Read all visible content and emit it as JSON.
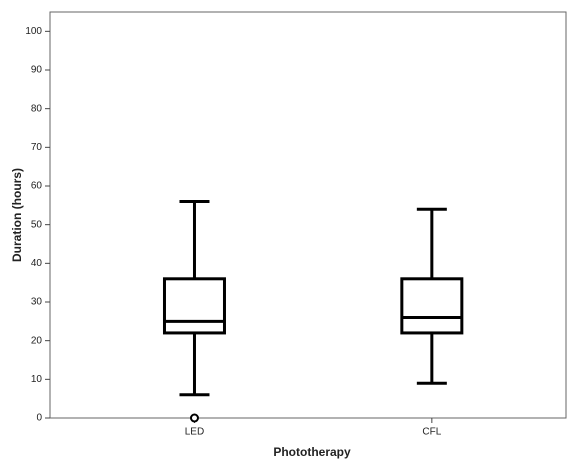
{
  "chart_data": {
    "type": "box",
    "x_label": "Phototherapy",
    "y_label": "Duration (hours)",
    "categories": [
      "LED",
      "CFL"
    ],
    "boxes": [
      {
        "min": 6,
        "q1": 22,
        "median": 25,
        "q3": 36,
        "max": 56,
        "outliers": [
          0
        ]
      },
      {
        "min": 9,
        "q1": 22,
        "median": 26,
        "q3": 36,
        "max": 54,
        "outliers": []
      }
    ],
    "color": "#000000",
    "ylim": [
      0,
      105
    ],
    "yticks": [
      0,
      10,
      20,
      30,
      40,
      50,
      60,
      70,
      80,
      90,
      100
    ]
  }
}
